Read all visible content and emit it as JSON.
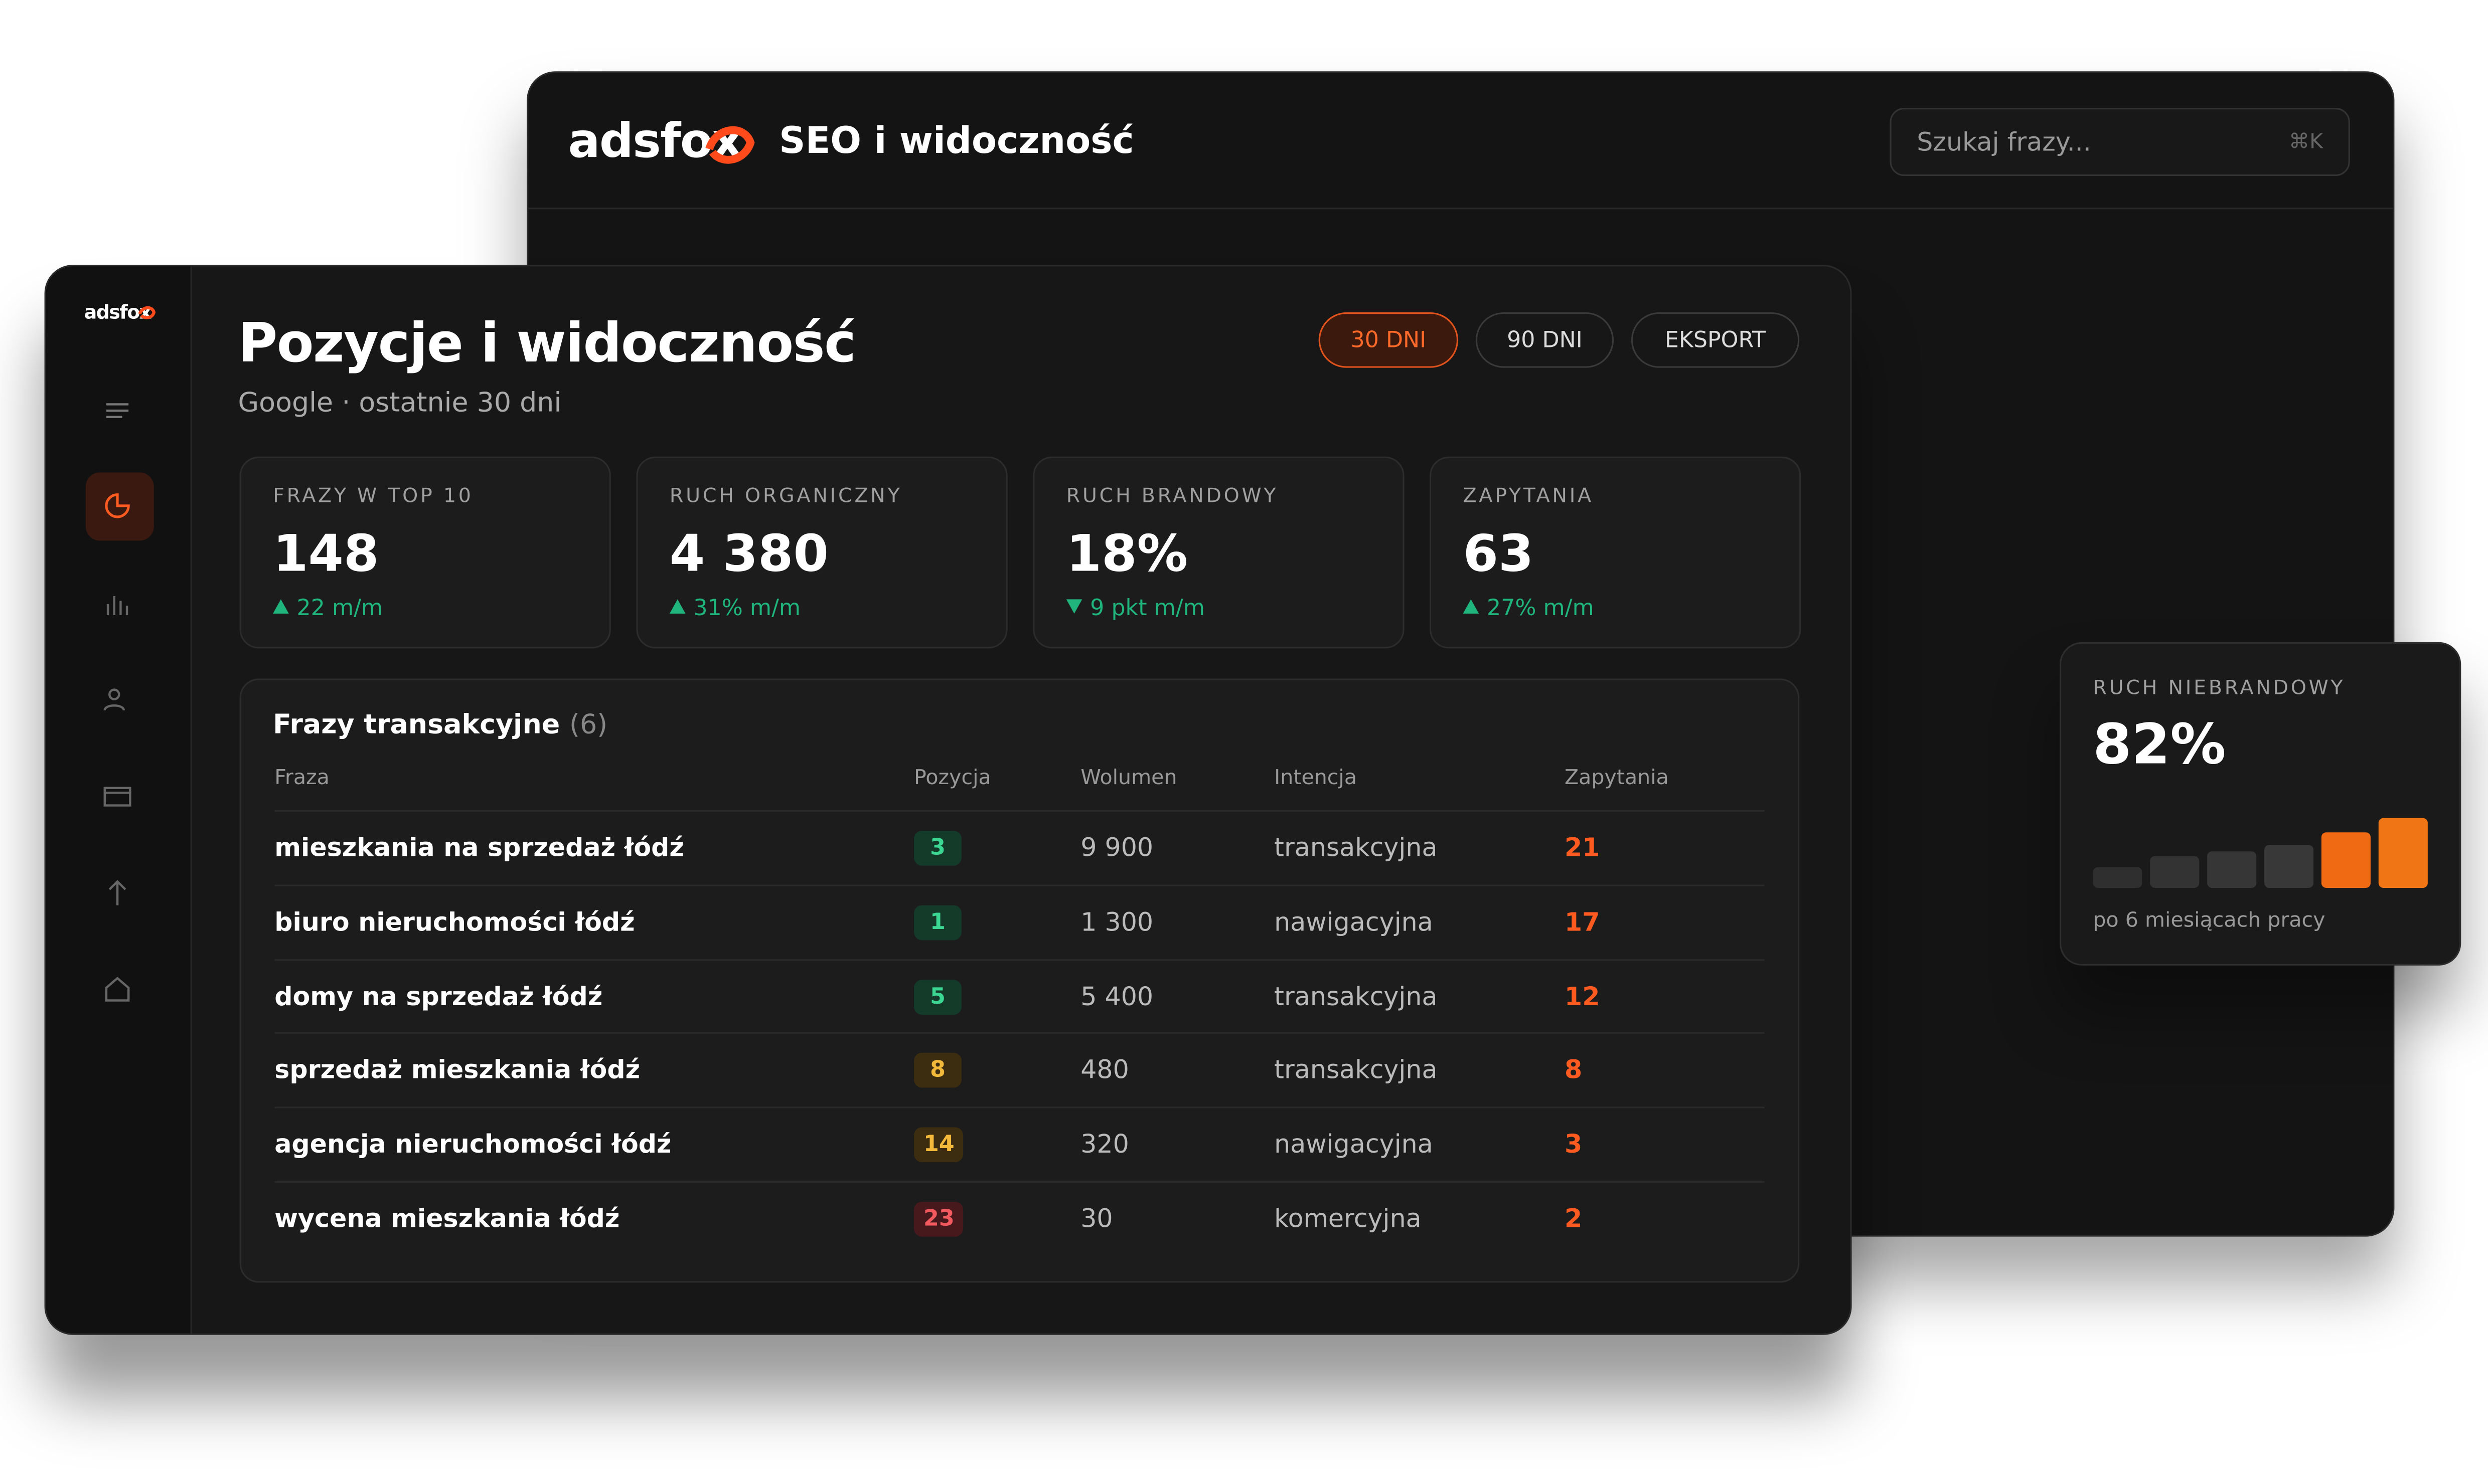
{
  "back_window": {
    "logo": "adsfox",
    "title": "SEO i widoczność",
    "search_placeholder": "Szukaj frazy...",
    "shortcut": "⌘K"
  },
  "sidebar": {
    "logo": "adsfox"
  },
  "header": {
    "title": "Pozycje i widoczność",
    "subtitle": "Google · ostatnie 30 dni",
    "buttons": [
      "30 DNI",
      "90 DNI",
      "EKSPORT"
    ],
    "active_button": 0
  },
  "kpis": [
    {
      "label": "FRAZY W TOP 10",
      "value": "148",
      "delta": "22 m/m",
      "trend": "up"
    },
    {
      "label": "RUCH ORGANICZNY",
      "value": "4 380",
      "delta": "31% m/m",
      "trend": "up"
    },
    {
      "label": "RUCH BRANDOWY",
      "value": "18%",
      "delta": "9 pkt m/m",
      "trend": "down"
    },
    {
      "label": "ZAPYTANIA",
      "value": "63",
      "delta": "27% m/m",
      "trend": "up"
    }
  ],
  "table": {
    "title": "Frazy transakcyjne",
    "count": "(6)",
    "columns": [
      "Fraza",
      "Pozycja",
      "Wolumen",
      "Intencja",
      "Zapytania"
    ],
    "rows": [
      [
        "mieszkania na sprzedaż łódź",
        "3",
        "9 900",
        "transakcyjna",
        "21"
      ],
      [
        "biuro nieruchomości łódź",
        "1",
        "1 300",
        "nawigacyjna",
        "17"
      ],
      [
        "domy na sprzedaż łódź",
        "5",
        "5 400",
        "transakcyjna",
        "12"
      ],
      [
        "sprzedaż mieszkania łódź",
        "8",
        "480",
        "transakcyjna",
        "8"
      ],
      [
        "agencja nieruchomości łódź",
        "14",
        "320",
        "nawigacyjna",
        "3"
      ],
      [
        "wycena mieszkania łódź",
        "23",
        "30",
        "komercyjna",
        "2"
      ]
    ],
    "position_tones": [
      "green",
      "green",
      "green",
      "amber",
      "amber",
      "red"
    ]
  },
  "side_card": {
    "label": "RUCH NIEBRANDOWY",
    "value": "82%",
    "caption": "po 6 miesiącach pracy"
  }
}
